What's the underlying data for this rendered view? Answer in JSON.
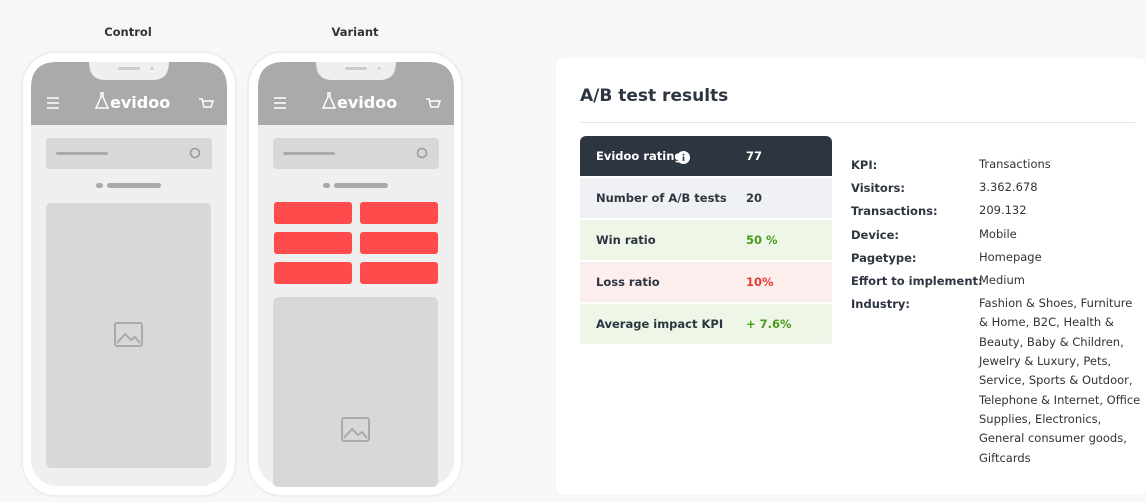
{
  "phones": [
    {
      "label": "Control",
      "logo": "evidoo"
    },
    {
      "label": "Variant",
      "logo": "evidoo"
    }
  ],
  "results": {
    "title": "A/B test results",
    "table": [
      [
        "Evidoo rating",
        "77"
      ],
      [
        "Number of A/B tests",
        "20"
      ],
      [
        "Win ratio",
        "50 %"
      ],
      [
        "Loss ratio",
        "10%"
      ],
      [
        "Average impact KPI",
        "+ 7.6%"
      ]
    ],
    "details": [
      [
        "KPI:",
        "Transactions"
      ],
      [
        "Visitors:",
        "3.362.678"
      ],
      [
        "Transactions:",
        "209.132"
      ],
      [
        "Device:",
        "Mobile"
      ],
      [
        "Pagetype:",
        "Homepage"
      ],
      [
        "Effort to implement:",
        "Medium"
      ],
      [
        "Industry:",
        "Fashion & Shoes, Furniture & Home, B2C, Health & Beauty, Baby & Children, Jewelry & Luxury, Pets, Service, Sports & Outdoor, Telephone & Internet, Office Supplies, Electronics, General consumer goods, Giftcards"
      ]
    ]
  }
}
